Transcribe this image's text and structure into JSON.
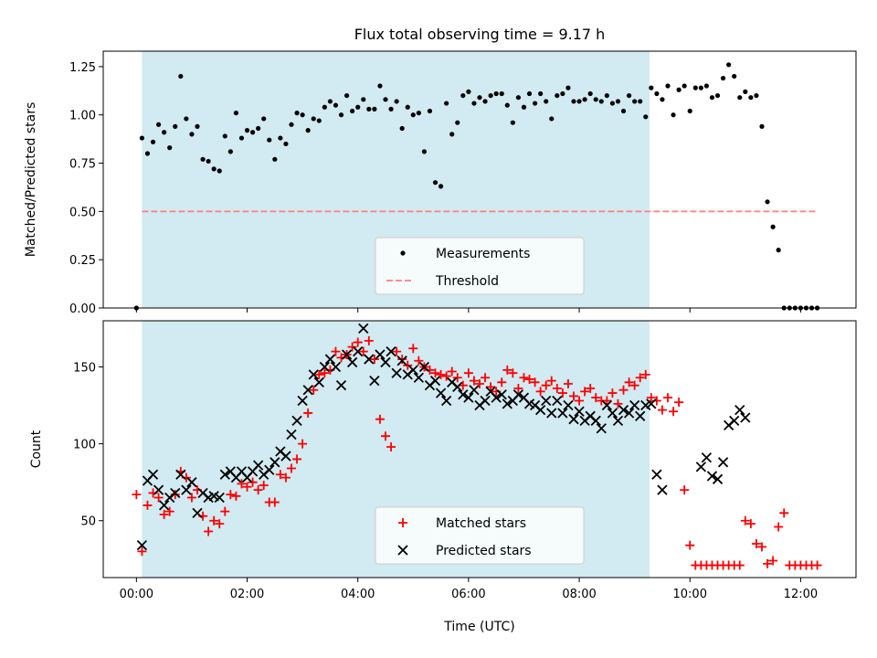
{
  "figure": {
    "title": "Flux total observing time = 9.17 h"
  },
  "chart_data": [
    {
      "type": "scatter",
      "ylabel": "Matched/Predicted stars",
      "xlim": [
        -0.6,
        13.0
      ],
      "ylim": [
        0,
        1.33
      ],
      "yticks": [
        0.0,
        0.25,
        0.5,
        0.75,
        1.0,
        1.25
      ],
      "ytick_labels": [
        "0.00",
        "0.25",
        "0.50",
        "0.75",
        "1.00",
        "1.25"
      ],
      "shaded_region_hours": [
        0.1,
        9.27
      ],
      "shaded_color": "#add8e6",
      "threshold": {
        "name": "Threshold",
        "value": 0.5,
        "x_range": [
          0.1,
          12.3
        ],
        "color": "#ff7f7f"
      },
      "legend": {
        "placement": "lower-center",
        "entries": [
          "Measurements",
          "Threshold"
        ]
      },
      "series": [
        {
          "name": "Measurements",
          "color": "#000000",
          "marker": "dot",
          "x": [
            0.0,
            0.1,
            0.2,
            0.3,
            0.4,
            0.5,
            0.6,
            0.7,
            0.8,
            0.9,
            1.0,
            1.1,
            1.2,
            1.3,
            1.4,
            1.5,
            1.6,
            1.7,
            1.8,
            1.9,
            2.0,
            2.1,
            2.2,
            2.3,
            2.4,
            2.5,
            2.6,
            2.7,
            2.8,
            2.9,
            3.0,
            3.1,
            3.2,
            3.3,
            3.4,
            3.5,
            3.6,
            3.7,
            3.8,
            3.9,
            4.0,
            4.1,
            4.2,
            4.3,
            4.4,
            4.5,
            4.6,
            4.7,
            4.8,
            4.9,
            5.0,
            5.1,
            5.2,
            5.3,
            5.4,
            5.5,
            5.6,
            5.7,
            5.8,
            5.9,
            6.0,
            6.1,
            6.2,
            6.3,
            6.4,
            6.5,
            6.6,
            6.7,
            6.8,
            6.9,
            7.0,
            7.1,
            7.2,
            7.3,
            7.4,
            7.5,
            7.6,
            7.7,
            7.8,
            7.9,
            8.0,
            8.1,
            8.2,
            8.3,
            8.4,
            8.5,
            8.6,
            8.7,
            8.8,
            8.9,
            9.0,
            9.1,
            9.2,
            9.3,
            9.4,
            9.5,
            9.6,
            9.7,
            9.8,
            9.9,
            10.0,
            10.1,
            10.2,
            10.3,
            10.4,
            10.5,
            10.6,
            10.7,
            10.8,
            10.9,
            11.0,
            11.1,
            11.2,
            11.3,
            11.4,
            11.5,
            11.6,
            11.7,
            11.8,
            11.9,
            12.0,
            12.1,
            12.2,
            12.3
          ],
          "y": [
            0.0,
            0.88,
            0.8,
            0.86,
            0.95,
            0.91,
            0.83,
            0.94,
            1.2,
            0.98,
            0.9,
            0.94,
            0.77,
            0.76,
            0.72,
            0.71,
            0.89,
            0.81,
            1.01,
            0.88,
            0.92,
            0.91,
            0.93,
            0.98,
            0.87,
            0.77,
            0.88,
            0.85,
            0.95,
            1.01,
            1.0,
            0.92,
            0.98,
            0.97,
            1.04,
            1.07,
            1.05,
            1.0,
            1.1,
            1.02,
            1.04,
            1.08,
            1.03,
            1.03,
            1.15,
            1.08,
            1.03,
            1.07,
            0.93,
            1.04,
            1.0,
            1.01,
            0.81,
            1.02,
            0.65,
            0.63,
            1.06,
            0.9,
            0.96,
            1.1,
            1.12,
            1.06,
            1.09,
            1.07,
            1.1,
            1.11,
            1.11,
            1.05,
            0.96,
            1.09,
            1.04,
            1.11,
            1.06,
            1.11,
            1.07,
            0.98,
            1.1,
            1.11,
            1.14,
            1.07,
            1.07,
            1.08,
            1.11,
            1.08,
            1.07,
            1.1,
            1.06,
            1.07,
            1.02,
            1.1,
            1.07,
            1.07,
            0.99,
            1.14,
            1.11,
            1.08,
            1.15,
            1.0,
            1.13,
            1.15,
            1.02,
            1.14,
            1.14,
            1.15,
            1.09,
            1.1,
            1.19,
            1.26,
            1.2,
            1.09,
            1.12,
            1.09,
            1.1,
            0.94,
            0.55,
            0.42,
            0.3,
            0.0,
            0.0,
            0.0,
            0.0,
            0.0,
            0.0,
            0.0
          ]
        }
      ]
    },
    {
      "type": "scatter",
      "xlabel": "Time (UTC)",
      "ylabel": "Count",
      "xlim": [
        -0.6,
        13.0
      ],
      "ylim": [
        13,
        180
      ],
      "xticks": [
        0,
        2,
        4,
        6,
        8,
        10,
        12
      ],
      "xtick_labels": [
        "00:00",
        "02:00",
        "04:00",
        "06:00",
        "08:00",
        "10:00",
        "12:00"
      ],
      "yticks": [
        50,
        100,
        150
      ],
      "ytick_labels": [
        "50",
        "100",
        "150"
      ],
      "shaded_region_hours": [
        0.1,
        9.27
      ],
      "shaded_color": "#add8e6",
      "legend": {
        "placement": "lower-center",
        "entries": [
          "Matched stars",
          "Predicted stars"
        ]
      },
      "series": [
        {
          "name": "Matched stars",
          "color": "#ff0000",
          "marker": "plus",
          "x": [
            0.0,
            0.1,
            0.2,
            0.3,
            0.4,
            0.5,
            0.6,
            0.7,
            0.8,
            0.9,
            1.0,
            1.1,
            1.2,
            1.3,
            1.4,
            1.5,
            1.6,
            1.7,
            1.8,
            1.9,
            2.0,
            2.1,
            2.2,
            2.3,
            2.4,
            2.5,
            2.6,
            2.7,
            2.8,
            2.9,
            3.0,
            3.1,
            3.2,
            3.3,
            3.4,
            3.5,
            3.6,
            3.7,
            3.8,
            3.9,
            4.0,
            4.1,
            4.2,
            4.3,
            4.4,
            4.5,
            4.6,
            4.7,
            4.8,
            4.9,
            5.0,
            5.1,
            5.2,
            5.3,
            5.4,
            5.5,
            5.6,
            5.7,
            5.8,
            5.9,
            6.0,
            6.1,
            6.2,
            6.3,
            6.4,
            6.5,
            6.6,
            6.7,
            6.8,
            6.9,
            7.0,
            7.1,
            7.2,
            7.3,
            7.4,
            7.5,
            7.6,
            7.7,
            7.8,
            7.9,
            8.0,
            8.1,
            8.2,
            8.3,
            8.4,
            8.5,
            8.6,
            8.7,
            8.8,
            8.9,
            9.0,
            9.1,
            9.2,
            9.3,
            9.4,
            9.5,
            9.6,
            9.7,
            9.8,
            9.9,
            10.0,
            10.1,
            10.2,
            10.3,
            10.4,
            10.5,
            10.6,
            10.7,
            10.8,
            10.9,
            11.0,
            11.1,
            11.2,
            11.3,
            11.4,
            11.5,
            11.6,
            11.7,
            11.8,
            11.9,
            12.0,
            12.1,
            12.2,
            12.3
          ],
          "y": [
            67,
            30,
            60,
            68,
            65,
            54,
            56,
            67,
            82,
            78,
            65,
            70,
            53,
            43,
            50,
            48,
            56,
            67,
            66,
            74,
            72,
            75,
            70,
            73,
            62,
            62,
            80,
            78,
            84,
            90,
            100,
            120,
            135,
            145,
            146,
            148,
            160,
            156,
            158,
            163,
            166,
            160,
            167,
            155,
            116,
            105,
            98,
            160,
            155,
            151,
            162,
            154,
            150,
            148,
            146,
            145,
            144,
            147,
            143,
            138,
            146,
            141,
            139,
            143,
            137,
            134,
            140,
            148,
            146,
            136,
            143,
            142,
            140,
            134,
            138,
            141,
            136,
            133,
            139,
            131,
            128,
            134,
            136,
            130,
            128,
            128,
            133,
            126,
            135,
            140,
            138,
            143,
            145,
            130,
            128,
            122,
            130,
            121,
            127,
            70,
            34,
            21,
            21,
            21,
            21,
            21,
            21,
            21,
            21,
            21,
            50,
            48,
            35,
            33,
            22,
            24,
            46,
            55,
            21,
            21,
            21,
            21,
            21,
            21
          ]
        },
        {
          "name": "Predicted stars",
          "color": "#000000",
          "marker": "x",
          "x": [
            0.1,
            0.2,
            0.3,
            0.4,
            0.5,
            0.6,
            0.7,
            0.8,
            0.9,
            1.0,
            1.1,
            1.2,
            1.3,
            1.4,
            1.5,
            1.6,
            1.7,
            1.8,
            1.9,
            2.0,
            2.1,
            2.2,
            2.3,
            2.4,
            2.5,
            2.6,
            2.7,
            2.8,
            2.9,
            3.0,
            3.1,
            3.2,
            3.3,
            3.4,
            3.5,
            3.6,
            3.7,
            3.8,
            3.9,
            4.0,
            4.1,
            4.2,
            4.3,
            4.4,
            4.5,
            4.6,
            4.7,
            4.8,
            4.9,
            5.0,
            5.1,
            5.2,
            5.3,
            5.4,
            5.5,
            5.6,
            5.7,
            5.8,
            5.9,
            6.0,
            6.1,
            6.2,
            6.3,
            6.4,
            6.5,
            6.6,
            6.7,
            6.8,
            6.9,
            7.0,
            7.1,
            7.2,
            7.3,
            7.4,
            7.5,
            7.6,
            7.7,
            7.8,
            7.9,
            8.0,
            8.1,
            8.2,
            8.3,
            8.4,
            8.5,
            8.6,
            8.7,
            8.8,
            8.9,
            9.0,
            9.1,
            9.2,
            9.3,
            9.4,
            9.5,
            10.2,
            10.3,
            10.4,
            10.5,
            10.6,
            10.7,
            10.8,
            10.9,
            11.0
          ],
          "y": [
            34,
            76,
            80,
            70,
            60,
            65,
            68,
            80,
            70,
            75,
            55,
            68,
            65,
            66,
            65,
            80,
            82,
            78,
            82,
            78,
            82,
            86,
            80,
            83,
            88,
            95,
            92,
            106,
            115,
            128,
            135,
            145,
            140,
            150,
            155,
            150,
            138,
            158,
            153,
            160,
            175,
            155,
            141,
            158,
            153,
            160,
            146,
            154,
            145,
            148,
            143,
            150,
            138,
            141,
            133,
            128,
            140,
            137,
            132,
            130,
            135,
            125,
            128,
            134,
            130,
            132,
            126,
            128,
            132,
            130,
            126,
            125,
            122,
            128,
            120,
            128,
            120,
            125,
            116,
            121,
            115,
            118,
            115,
            110,
            125,
            120,
            115,
            122,
            120,
            125,
            118,
            125,
            126,
            80,
            70,
            85,
            91,
            79,
            77,
            88,
            112,
            115,
            122,
            117
          ]
        }
      ]
    }
  ]
}
